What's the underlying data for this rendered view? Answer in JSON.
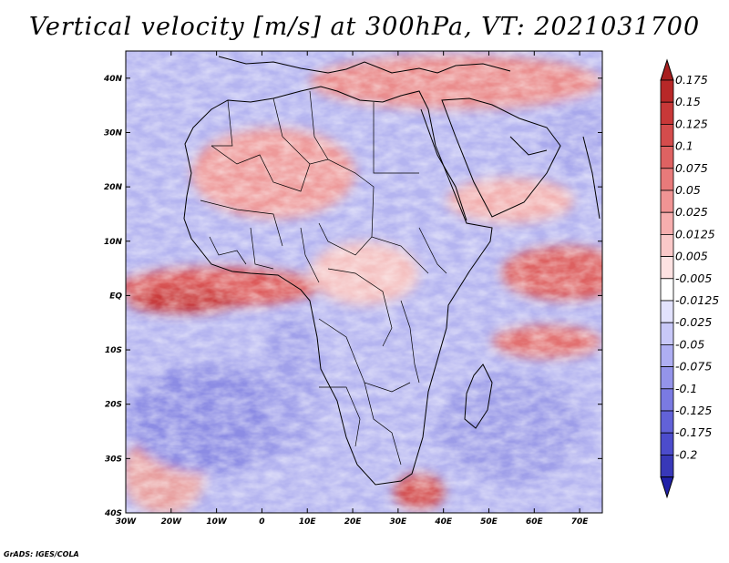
{
  "title": "Vertical velocity [m/s] at 300hPa, VT: 2021031700",
  "credit": "GrADS: IGES/COLA",
  "map": {
    "variable": "Vertical velocity",
    "units": "m/s",
    "level": "300hPa",
    "valid_time": "2021031700",
    "lon_range": [
      -30,
      75
    ],
    "lat_range": [
      -40,
      45
    ]
  },
  "lat_ticks": [
    {
      "label": "40N",
      "lat": 40
    },
    {
      "label": "30N",
      "lat": 30
    },
    {
      "label": "20N",
      "lat": 20
    },
    {
      "label": "10N",
      "lat": 10
    },
    {
      "label": "EQ",
      "lat": 0
    },
    {
      "label": "10S",
      "lat": -10
    },
    {
      "label": "20S",
      "lat": -20
    },
    {
      "label": "30S",
      "lat": -30
    },
    {
      "label": "40S",
      "lat": -40
    }
  ],
  "lon_ticks": [
    {
      "label": "30W",
      "lon": -30
    },
    {
      "label": "20W",
      "lon": -20
    },
    {
      "label": "10W",
      "lon": -10
    },
    {
      "label": "0",
      "lon": 0
    },
    {
      "label": "10E",
      "lon": 10
    },
    {
      "label": "20E",
      "lon": 20
    },
    {
      "label": "30E",
      "lon": 30
    },
    {
      "label": "40E",
      "lon": 40
    },
    {
      "label": "50E",
      "lon": 50
    },
    {
      "label": "60E",
      "lon": 60
    },
    {
      "label": "70E",
      "lon": 70
    }
  ],
  "colorbar": [
    {
      "label": "0.175",
      "color": "#b82828"
    },
    {
      "label": "0.15",
      "color": "#c83838"
    },
    {
      "label": "0.125",
      "color": "#d44c4c"
    },
    {
      "label": "0.1",
      "color": "#de6262"
    },
    {
      "label": "0.075",
      "color": "#e87a7a"
    },
    {
      "label": "0.05",
      "color": "#f09494"
    },
    {
      "label": "0.025",
      "color": "#f6aeae"
    },
    {
      "label": "0.0125",
      "color": "#fac8c8"
    },
    {
      "label": "0.005",
      "color": "#fde2e2"
    },
    {
      "label": "-0.005",
      "color": "#ffffff"
    },
    {
      "label": "-0.0125",
      "color": "#e2e2fd"
    },
    {
      "label": "-0.025",
      "color": "#c8c8f8"
    },
    {
      "label": "-0.05",
      "color": "#aeaef2"
    },
    {
      "label": "-0.075",
      "color": "#9494ea"
    },
    {
      "label": "-0.1",
      "color": "#7a7ae2"
    },
    {
      "label": "-0.125",
      "color": "#6262d8"
    },
    {
      "label": "-0.175",
      "color": "#4c4ccc"
    },
    {
      "label": "-0.2",
      "color": "#3838b8"
    }
  ],
  "colorbar_top_color": "#a82020",
  "colorbar_bottom_color": "#2020a8",
  "regions": [
    {
      "name": "equatorial-atlantic",
      "lon": [
        -20,
        10
      ],
      "lat": [
        -5,
        5
      ],
      "sign": "positive"
    },
    {
      "name": "north-africa",
      "lon": [
        -15,
        20
      ],
      "lat": [
        15,
        32
      ],
      "sign": "mixed"
    },
    {
      "name": "mediterranean",
      "lon": [
        10,
        55
      ],
      "lat": [
        34,
        45
      ],
      "sign": "positive"
    },
    {
      "name": "arabian-sea",
      "lon": [
        55,
        75
      ],
      "lat": [
        0,
        10
      ],
      "sign": "positive"
    },
    {
      "name": "south-atlantic",
      "lon": [
        -30,
        0
      ],
      "lat": [
        -40,
        -20
      ],
      "sign": "negative"
    }
  ]
}
